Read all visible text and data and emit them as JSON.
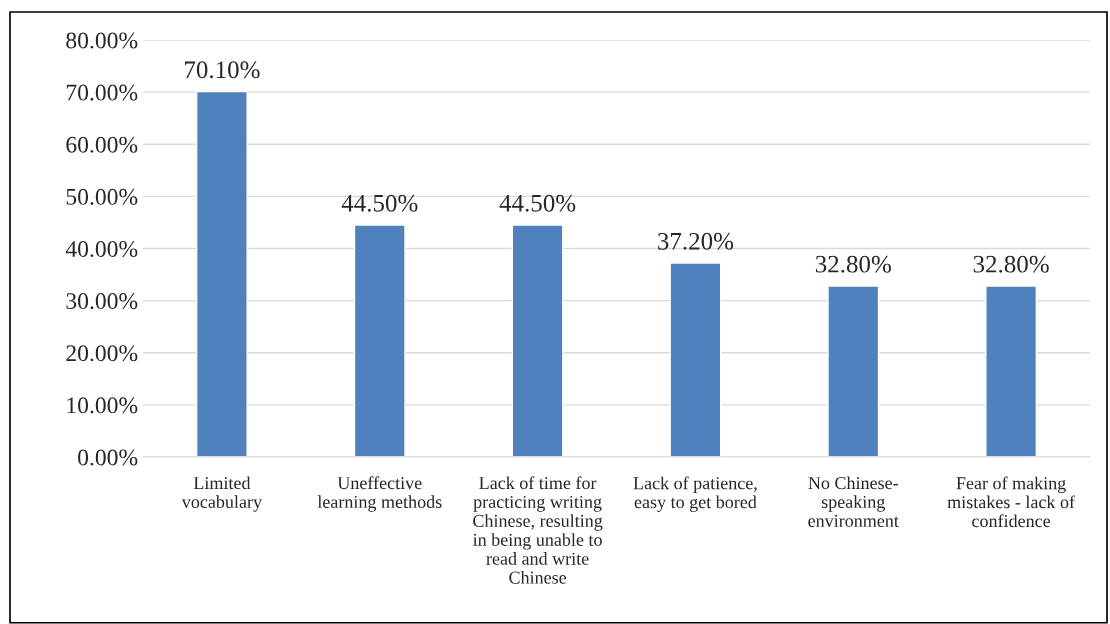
{
  "chart_data": {
    "type": "bar",
    "categories": [
      "Limited\nvocabulary",
      "Uneffective\nlearning methods",
      "Lack of time for\npracticing writing\nChinese, resulting\nin being unable to\nread and write\nChinese",
      "Lack of patience,\neasy to get bored",
      "No Chinese-\nspeaking\nenvironment",
      "Fear of making\nmistakes - lack of\nconfidence"
    ],
    "values": [
      70.1,
      44.5,
      44.5,
      37.2,
      32.8,
      32.8
    ],
    "value_labels": [
      "70.10%",
      "44.50%",
      "44.50%",
      "37.20%",
      "32.80%",
      "32.80%"
    ],
    "color": "#4f81bd",
    "ylim": [
      0,
      80
    ],
    "yticks": [
      {
        "value": 0,
        "label": "0.00%"
      },
      {
        "value": 10,
        "label": "10.00%"
      },
      {
        "value": 20,
        "label": "20.00%"
      },
      {
        "value": 30,
        "label": "30.00%"
      },
      {
        "value": 40,
        "label": "40.00%"
      },
      {
        "value": 50,
        "label": "50.00%"
      },
      {
        "value": 60,
        "label": "60.00%"
      },
      {
        "value": 70,
        "label": "70.00%"
      },
      {
        "value": 80,
        "label": "80.00%"
      }
    ],
    "grid": "y",
    "legend": false
  }
}
